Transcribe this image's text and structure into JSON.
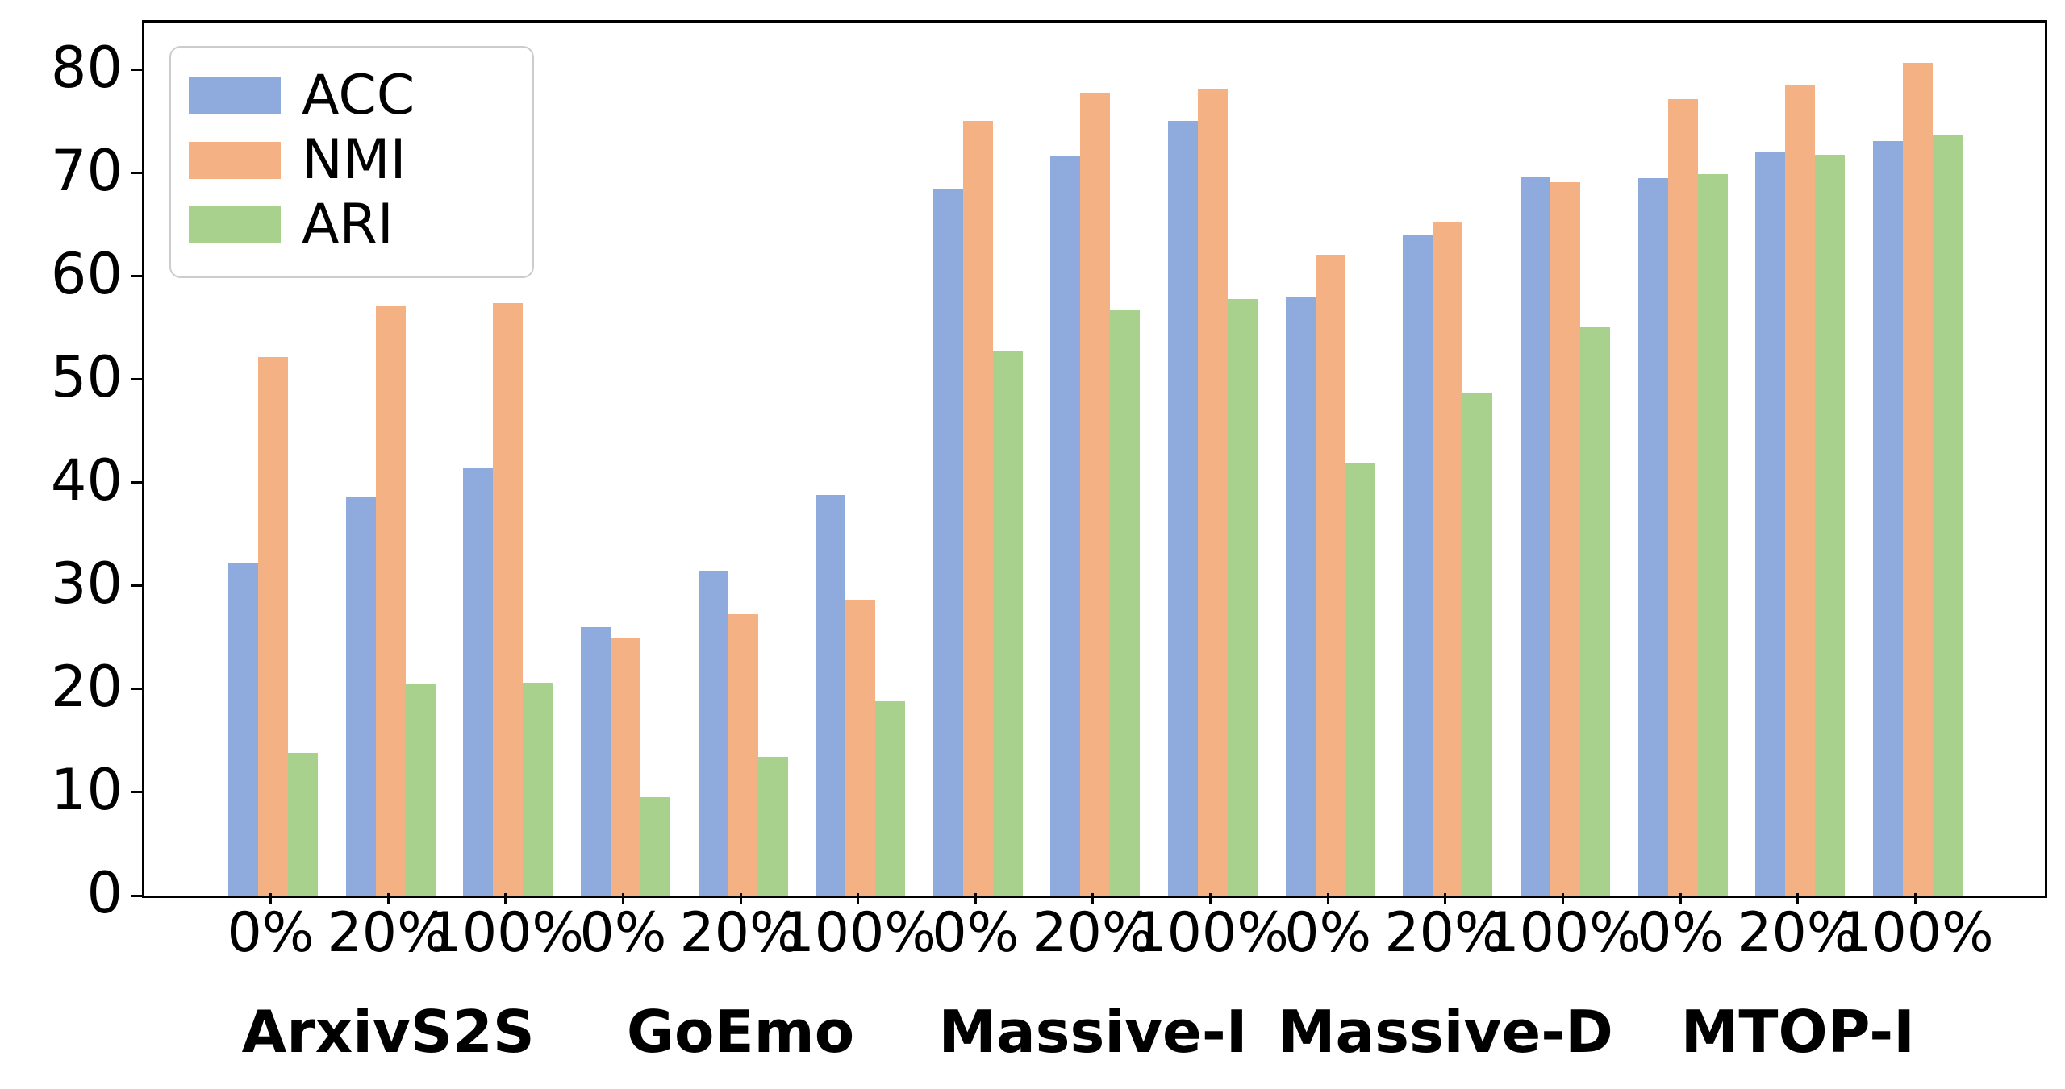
{
  "chart_data": {
    "type": "bar",
    "title": "",
    "xlabel": "",
    "ylabel": "",
    "ylim": [
      0,
      84.6
    ],
    "yticks": [
      0,
      10,
      20,
      30,
      40,
      50,
      60,
      70,
      80
    ],
    "grid": false,
    "legend_position": "upper-left",
    "tick_labels": [
      "0%",
      "20%",
      "100%",
      "0%",
      "20%",
      "100%",
      "0%",
      "20%",
      "100%",
      "0%",
      "20%",
      "100%",
      "0%",
      "20%",
      "100%"
    ],
    "group_labels": [
      "ArxivS2S",
      "GoEmo",
      "Massive-I",
      "Massive-D",
      "MTOP-I"
    ],
    "series": [
      {
        "name": "ACC",
        "color": "#8FAADC",
        "values": [
          32.2,
          38.6,
          41.4,
          26.0,
          31.5,
          38.8,
          68.5,
          71.6,
          75.1,
          58.0,
          64.0,
          69.6,
          69.5,
          72.0,
          73.1
        ]
      },
      {
        "name": "NMI",
        "color": "#F4B183",
        "values": [
          52.2,
          57.2,
          57.4,
          24.9,
          27.3,
          28.7,
          75.1,
          77.8,
          78.1,
          62.1,
          65.3,
          69.1,
          77.2,
          78.6,
          80.7
        ]
      },
      {
        "name": "ARI",
        "color": "#A9D18E",
        "values": [
          13.8,
          20.5,
          20.6,
          9.5,
          13.4,
          18.8,
          52.8,
          56.8,
          57.8,
          41.9,
          48.7,
          55.1,
          69.9,
          71.8,
          73.7
        ]
      }
    ],
    "legend": {
      "entries": [
        {
          "label": "ACC",
          "color": "#8FAADC"
        },
        {
          "label": "NMI",
          "color": "#F4B183"
        },
        {
          "label": "ARI",
          "color": "#A9D18E"
        }
      ]
    },
    "axis_color": "#000000",
    "background_color": "#ffffff"
  }
}
